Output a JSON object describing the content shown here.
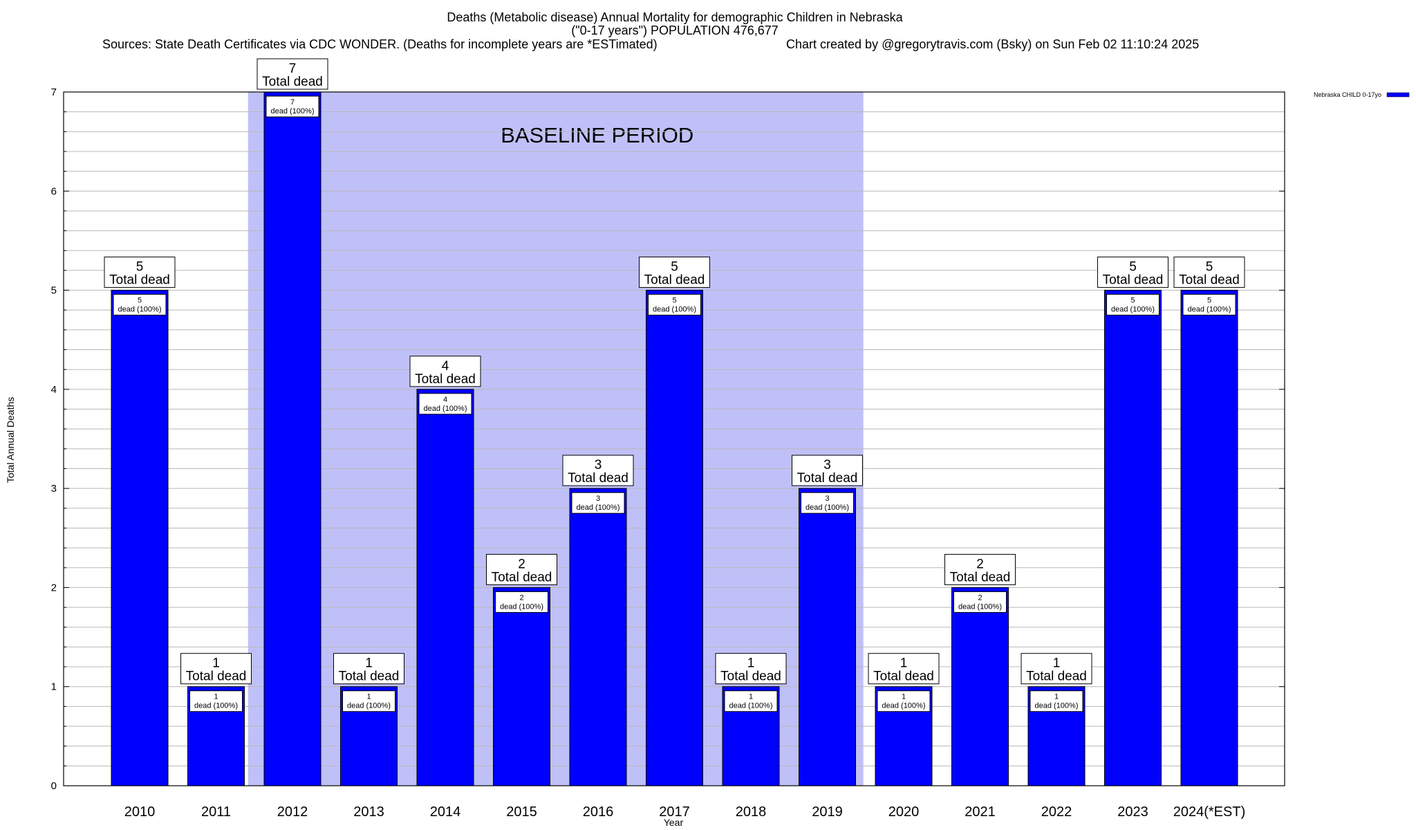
{
  "chart_data": {
    "type": "bar",
    "title_line1": "Deaths (Metabolic disease) Annual Mortality for demographic Children in Nebraska",
    "title_line2": "(\"0-17 years\") POPULATION 476,677",
    "sources": "Sources: State Death Certificates via CDC WONDER. (Deaths for incomplete years are *ESTimated)",
    "credit": "Chart created by @gregorytravis.com (Bsky) on Sun Feb 02 11:10:24 2025",
    "xlabel": "Year",
    "ylabel": "Total Annual Deaths",
    "ylim": [
      0,
      7
    ],
    "y_ticks": [
      "0",
      "1",
      "2",
      "3",
      "4",
      "5",
      "6",
      "7"
    ],
    "categories": [
      "2010",
      "2011",
      "2012",
      "2013",
      "2014",
      "2015",
      "2016",
      "2017",
      "2018",
      "2019",
      "2020",
      "2021",
      "2022",
      "2023",
      "2024(*EST)"
    ],
    "series": [
      {
        "name": "Nebraska CHILD 0-17yo",
        "color": "#0000ff",
        "values": [
          5,
          1,
          7,
          1,
          4,
          2,
          3,
          5,
          1,
          3,
          1,
          2,
          1,
          5,
          5
        ]
      }
    ],
    "total_labels": [
      "5",
      "1",
      "7",
      "1",
      "4",
      "2",
      "3",
      "5",
      "1",
      "3",
      "1",
      "2",
      "1",
      "5",
      "5"
    ],
    "total_label_suffix": "Total dead",
    "inner_labels": [
      "5",
      "1",
      "7",
      "1",
      "4",
      "2",
      "3",
      "5",
      "1",
      "3",
      "1",
      "2",
      "1",
      "5",
      "5"
    ],
    "inner_label_suffix": "dead (100%)",
    "baseline_period": {
      "label": "BASELINE PERIOD",
      "from": "2012",
      "to": "2019",
      "color": "#c0c0f8"
    },
    "grid": true,
    "legend_position": "top-right"
  }
}
